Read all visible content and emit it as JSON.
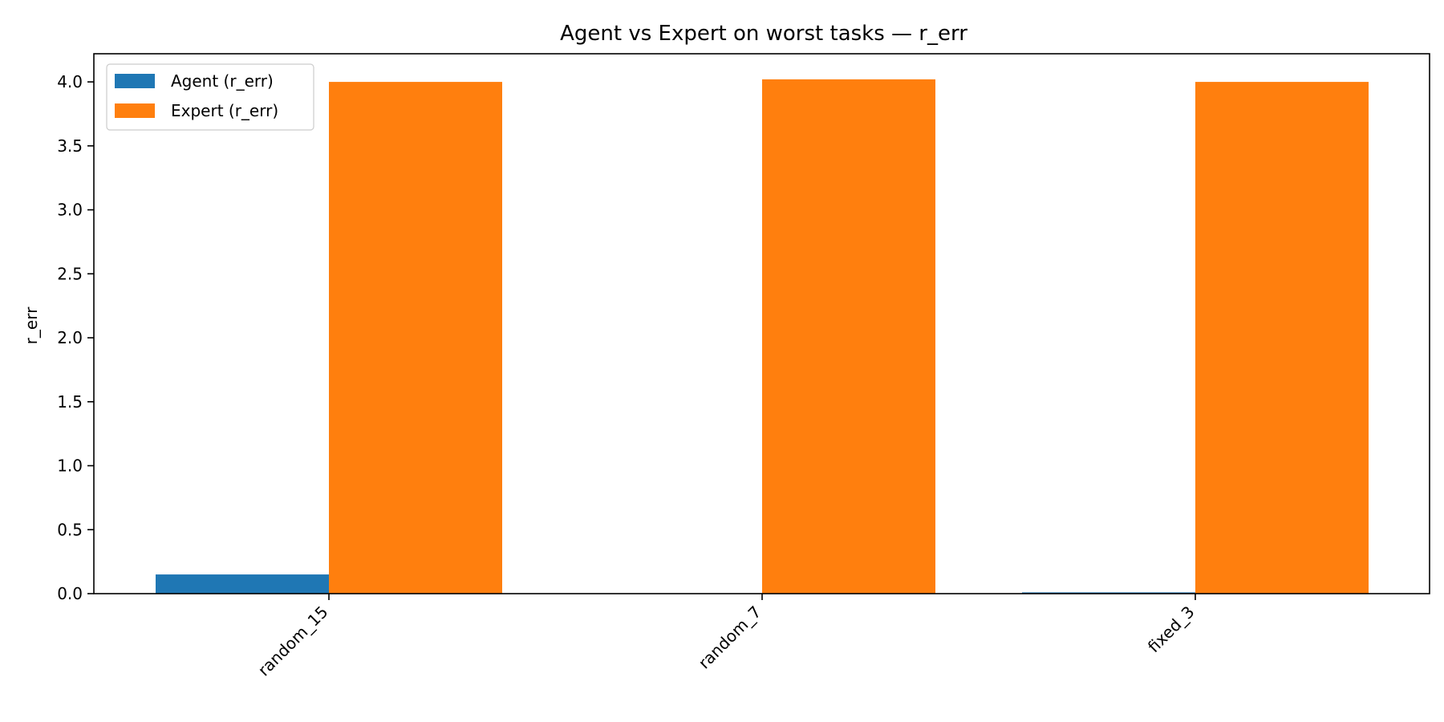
{
  "chart_data": {
    "type": "bar",
    "title": "Agent vs Expert on worst tasks — r_err",
    "xlabel": "",
    "ylabel": "r_err",
    "categories": [
      "random_15",
      "random_7",
      "fixed_3"
    ],
    "series": [
      {
        "name": "Agent (r_err)",
        "color": "#1f77b4",
        "values": [
          0.15,
          0.0,
          0.01
        ]
      },
      {
        "name": "Expert (r_err)",
        "color": "#ff7f0e",
        "values": [
          4.0,
          4.02,
          4.0
        ]
      }
    ],
    "ylim": [
      0,
      4.22
    ],
    "yticks": [
      "0.0",
      "0.5",
      "1.0",
      "1.5",
      "2.0",
      "2.5",
      "3.0",
      "3.5",
      "4.0"
    ],
    "grid": false,
    "legend_position": "top-left"
  }
}
